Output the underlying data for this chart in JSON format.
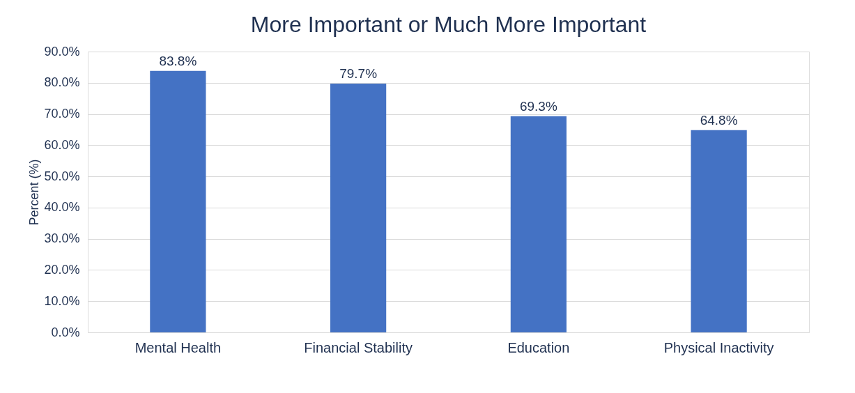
{
  "chart_data": {
    "type": "bar",
    "title": "More Important or Much More Important",
    "ylabel": "Percent (%)",
    "categories": [
      "Mental Health",
      "Financial Stability",
      "Education",
      "Physical Inactivity"
    ],
    "values": [
      83.8,
      79.7,
      69.3,
      64.8
    ],
    "color": "#4472c4",
    "value_labels": [
      "83.8%",
      "79.7%",
      "69.3%",
      "64.8%"
    ],
    "ylim": [
      0,
      90
    ],
    "yticks": [
      {
        "value": 0,
        "label": "0.0%"
      },
      {
        "value": 10,
        "label": "10.0%"
      },
      {
        "value": 20,
        "label": "20.0%"
      },
      {
        "value": 30,
        "label": "30.0%"
      },
      {
        "value": 40,
        "label": "40.0%"
      },
      {
        "value": 50,
        "label": "50.0%"
      },
      {
        "value": 60,
        "label": "60.0%"
      },
      {
        "value": 70,
        "label": "70.0%"
      },
      {
        "value": 80,
        "label": "80.0%"
      },
      {
        "value": 90,
        "label": "90.0%"
      }
    ],
    "grid": "y"
  }
}
